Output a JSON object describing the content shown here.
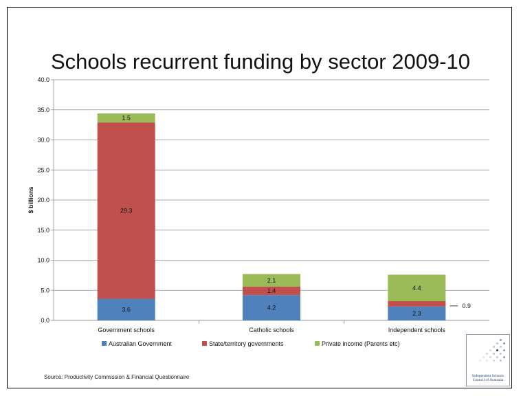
{
  "chart_data": {
    "type": "bar",
    "stacked": true,
    "title": "Schools recurrent funding by sector 2009-10",
    "ylabel": "$ billions",
    "xlabel": "",
    "ylim": [
      0,
      40
    ],
    "ytick_labels": [
      "0.0",
      "5.0",
      "10.0",
      "15.0",
      "20.0",
      "25.0",
      "30.0",
      "35.0",
      "40.0"
    ],
    "categories": [
      "Government schools",
      "Catholic schools",
      "Independent schools"
    ],
    "series": [
      {
        "name": "Australian Government",
        "color": "#4f81bd",
        "values": [
          3.6,
          4.2,
          2.3
        ],
        "labels": [
          "3.6",
          "4.2",
          "2.3"
        ]
      },
      {
        "name": "State/territory governments",
        "color": "#c0504d",
        "values": [
          29.3,
          1.4,
          0.9
        ],
        "labels": [
          "29.3",
          "1.4",
          "0.9"
        ]
      },
      {
        "name": "Private income (Parents etc)",
        "color": "#9bbb59",
        "values": [
          1.5,
          2.1,
          4.4
        ],
        "labels": [
          "1.5",
          "2.1",
          "4.4"
        ]
      }
    ],
    "grid": true,
    "legend_position": "bottom"
  },
  "source_note": "Source: Productivity Commission & Financial Questionnaire",
  "logo": {
    "line1": "Independent Schools",
    "line2": "Council of Australia"
  }
}
